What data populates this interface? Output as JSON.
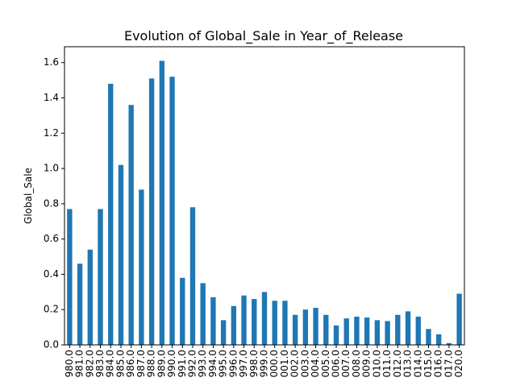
{
  "chart_data": {
    "type": "bar",
    "title": "Evolution of Global_Sale in Year_of_Release",
    "xlabel": "",
    "ylabel": "Global_Sale",
    "ylim": [
      0,
      1.69
    ],
    "yticks": [
      "0.0",
      "0.2",
      "0.4",
      "0.6",
      "0.8",
      "1.0",
      "1.2",
      "1.4",
      "1.6"
    ],
    "categories": [
      "980.0",
      "981.0",
      "982.0",
      "983.0",
      "984.0",
      "985.0",
      "986.0",
      "987.0",
      "988.0",
      "989.0",
      "990.0",
      "991.0",
      "992.0",
      "993.0",
      "994.0",
      "995.0",
      "996.0",
      "997.0",
      "998.0",
      "999.0",
      "000.0",
      "001.0",
      "002.0",
      "003.0",
      "004.0",
      "005.0",
      "006.0",
      "007.0",
      "008.0",
      "009.0",
      "010.0",
      "011.0",
      "012.0",
      "013.0",
      "014.0",
      "015.0",
      "016.0",
      "017.0",
      "020.0"
    ],
    "values": [
      0.77,
      0.46,
      0.54,
      0.77,
      1.48,
      1.02,
      1.36,
      0.88,
      1.51,
      1.61,
      1.52,
      0.38,
      0.78,
      0.35,
      0.27,
      0.14,
      0.22,
      0.28,
      0.26,
      0.3,
      0.25,
      0.25,
      0.17,
      0.2,
      0.21,
      0.17,
      0.11,
      0.15,
      0.16,
      0.155,
      0.14,
      0.135,
      0.17,
      0.19,
      0.16,
      0.09,
      0.06,
      0.01,
      0.29
    ],
    "grid": false,
    "legend": "none",
    "colors": {
      "bar": "#1f77b4",
      "axis": "#000000",
      "background": "#ffffff"
    }
  }
}
